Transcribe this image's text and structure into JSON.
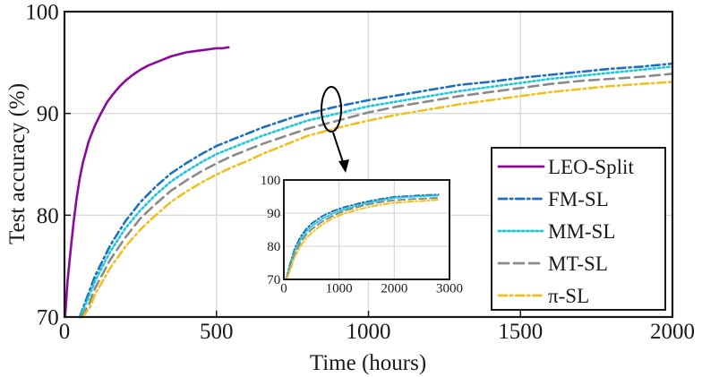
{
  "chart_data": [
    {
      "id": "main",
      "type": "line",
      "title": "",
      "xlabel": "Time (hours)",
      "ylabel": "Test accuracy (%)",
      "xlim": [
        0,
        2000
      ],
      "ylim": [
        70,
        100
      ],
      "xticks": [
        0,
        500,
        1000,
        1500,
        2000
      ],
      "yticks": [
        70,
        80,
        90,
        100
      ],
      "grid": true,
      "legend_position": "bottom-right",
      "series": [
        {
          "name": "LEO-Split",
          "color": "#8B0A9C",
          "dash": "solid",
          "x": [
            2,
            10,
            20,
            30,
            40,
            50,
            60,
            80,
            100,
            120,
            140,
            160,
            180,
            200,
            225,
            250,
            275,
            300,
            325,
            350,
            375,
            400,
            425,
            450,
            475,
            500,
            520,
            540
          ],
          "y": [
            69.5,
            73.5,
            76.5,
            79.3,
            81.7,
            83.6,
            85.1,
            87.3,
            88.8,
            90.0,
            91.1,
            91.9,
            92.6,
            93.2,
            93.8,
            94.3,
            94.7,
            95.0,
            95.3,
            95.6,
            95.8,
            96.0,
            96.1,
            96.2,
            96.3,
            96.4,
            96.4,
            96.5
          ]
        },
        {
          "name": "FM-SL",
          "color": "#1F6FBF",
          "dash": "dashdot",
          "x": [
            50,
            75,
            100,
            150,
            200,
            250,
            300,
            350,
            400,
            450,
            500,
            550,
            600,
            650,
            700,
            750,
            800,
            900,
            1000,
            1100,
            1200,
            1300,
            1400,
            1500,
            1600,
            1700,
            1800,
            1900,
            2000
          ],
          "y": [
            69.5,
            72.0,
            74.0,
            77.0,
            79.4,
            81.3,
            82.8,
            84.1,
            85.1,
            86.0,
            86.8,
            87.4,
            88.0,
            88.6,
            89.1,
            89.6,
            90.0,
            90.7,
            91.3,
            91.8,
            92.3,
            92.8,
            93.1,
            93.5,
            93.8,
            94.1,
            94.4,
            94.6,
            94.9
          ]
        },
        {
          "name": "MM-SL",
          "color": "#1EC8D8",
          "dash": "dotted",
          "x": [
            50,
            75,
            100,
            150,
            200,
            250,
            300,
            350,
            400,
            450,
            500,
            550,
            600,
            650,
            700,
            750,
            800,
            900,
            1000,
            1100,
            1200,
            1300,
            1400,
            1500,
            1600,
            1700,
            1800,
            1900,
            2000
          ],
          "y": [
            69.5,
            71.6,
            73.5,
            76.4,
            78.7,
            80.5,
            82.0,
            83.3,
            84.3,
            85.2,
            86.0,
            86.6,
            87.2,
            87.8,
            88.3,
            88.8,
            89.3,
            90.0,
            90.7,
            91.2,
            91.7,
            92.2,
            92.6,
            93.0,
            93.4,
            93.7,
            94.0,
            94.3,
            94.6
          ]
        },
        {
          "name": "MT-SL",
          "color": "#8A8A8A",
          "dash": "dashed",
          "x": [
            55,
            80,
            100,
            150,
            200,
            250,
            300,
            350,
            400,
            450,
            500,
            550,
            600,
            650,
            700,
            750,
            800,
            900,
            1000,
            1100,
            1200,
            1300,
            1400,
            1500,
            1600,
            1700,
            1800,
            1900,
            2000
          ],
          "y": [
            69.5,
            71.2,
            72.8,
            75.6,
            77.8,
            79.7,
            81.1,
            82.4,
            83.4,
            84.3,
            85.1,
            85.8,
            86.4,
            87.0,
            87.5,
            88.0,
            88.5,
            89.3,
            90.1,
            90.7,
            91.2,
            91.7,
            92.1,
            92.5,
            92.9,
            93.2,
            93.4,
            93.6,
            93.9
          ]
        },
        {
          "name": "π-SL",
          "color": "#F2C01E",
          "dash": "dashdot",
          "x": [
            60,
            85,
            100,
            150,
            200,
            250,
            300,
            350,
            400,
            450,
            500,
            550,
            600,
            650,
            700,
            750,
            800,
            900,
            1000,
            1100,
            1200,
            1300,
            1400,
            1500,
            1600,
            1700,
            1800,
            1900,
            2000
          ],
          "y": [
            69.5,
            71.0,
            72.2,
            74.8,
            76.9,
            78.6,
            80.0,
            81.3,
            82.3,
            83.2,
            84.0,
            84.7,
            85.3,
            86.0,
            86.6,
            87.2,
            87.8,
            88.6,
            89.3,
            89.9,
            90.4,
            90.9,
            91.3,
            91.7,
            92.1,
            92.4,
            92.7,
            92.9,
            93.1
          ]
        }
      ]
    },
    {
      "id": "inset",
      "type": "line",
      "title": "",
      "xlabel": "",
      "ylabel": "",
      "xlim": [
        0,
        3000
      ],
      "ylim": [
        70,
        100
      ],
      "xticks": [
        0,
        1000,
        2000,
        3000
      ],
      "yticks": [
        70,
        80,
        90,
        100
      ],
      "grid": true,
      "series": [
        {
          "name": "FM-SL",
          "color": "#1F6FBF",
          "dash": "dashdot",
          "x": [
            50,
            100,
            200,
            300,
            400,
            500,
            700,
            900,
            1100,
            1400,
            1700,
            2000,
            2400,
            2800
          ],
          "y": [
            70.5,
            74.0,
            79.4,
            82.8,
            85.1,
            86.8,
            89.1,
            90.7,
            91.8,
            93.1,
            94.1,
            94.9,
            95.3,
            95.6
          ]
        },
        {
          "name": "MM-SL",
          "color": "#1EC8D8",
          "dash": "dotted",
          "x": [
            50,
            100,
            200,
            300,
            400,
            500,
            700,
            900,
            1100,
            1400,
            1700,
            2000,
            2400,
            2800
          ],
          "y": [
            70.3,
            73.5,
            78.7,
            82.0,
            84.3,
            86.0,
            88.3,
            90.0,
            91.2,
            92.6,
            93.7,
            94.6,
            95.0,
            95.3
          ]
        },
        {
          "name": "MT-SL",
          "color": "#8A8A8A",
          "dash": "dashed",
          "x": [
            50,
            100,
            200,
            300,
            400,
            500,
            700,
            900,
            1100,
            1400,
            1700,
            2000,
            2400,
            2800
          ],
          "y": [
            70.1,
            72.8,
            77.8,
            81.1,
            83.4,
            85.1,
            87.5,
            89.3,
            90.7,
            92.1,
            93.2,
            93.9,
            94.3,
            94.6
          ]
        },
        {
          "name": "π-SL",
          "color": "#F2C01E",
          "dash": "dashdot",
          "x": [
            50,
            100,
            200,
            300,
            400,
            500,
            700,
            900,
            1100,
            1400,
            1700,
            2000,
            2400,
            2800
          ],
          "y": [
            70.0,
            72.2,
            76.9,
            80.0,
            82.3,
            84.0,
            86.6,
            88.6,
            89.9,
            91.3,
            92.4,
            93.1,
            93.6,
            94.0
          ]
        }
      ]
    }
  ],
  "legend": {
    "items": [
      {
        "label": "LEO-Split",
        "color": "#8B0A9C",
        "dash": "solid"
      },
      {
        "label": "FM-SL",
        "color": "#1F6FBF",
        "dash": "dashdot"
      },
      {
        "label": "MM-SL",
        "color": "#1EC8D8",
        "dash": "dotted"
      },
      {
        "label": "MT-SL",
        "color": "#8A8A8A",
        "dash": "dashed"
      },
      {
        "label": "π-SL",
        "color": "#F2C01E",
        "dash": "dashdot"
      }
    ]
  }
}
